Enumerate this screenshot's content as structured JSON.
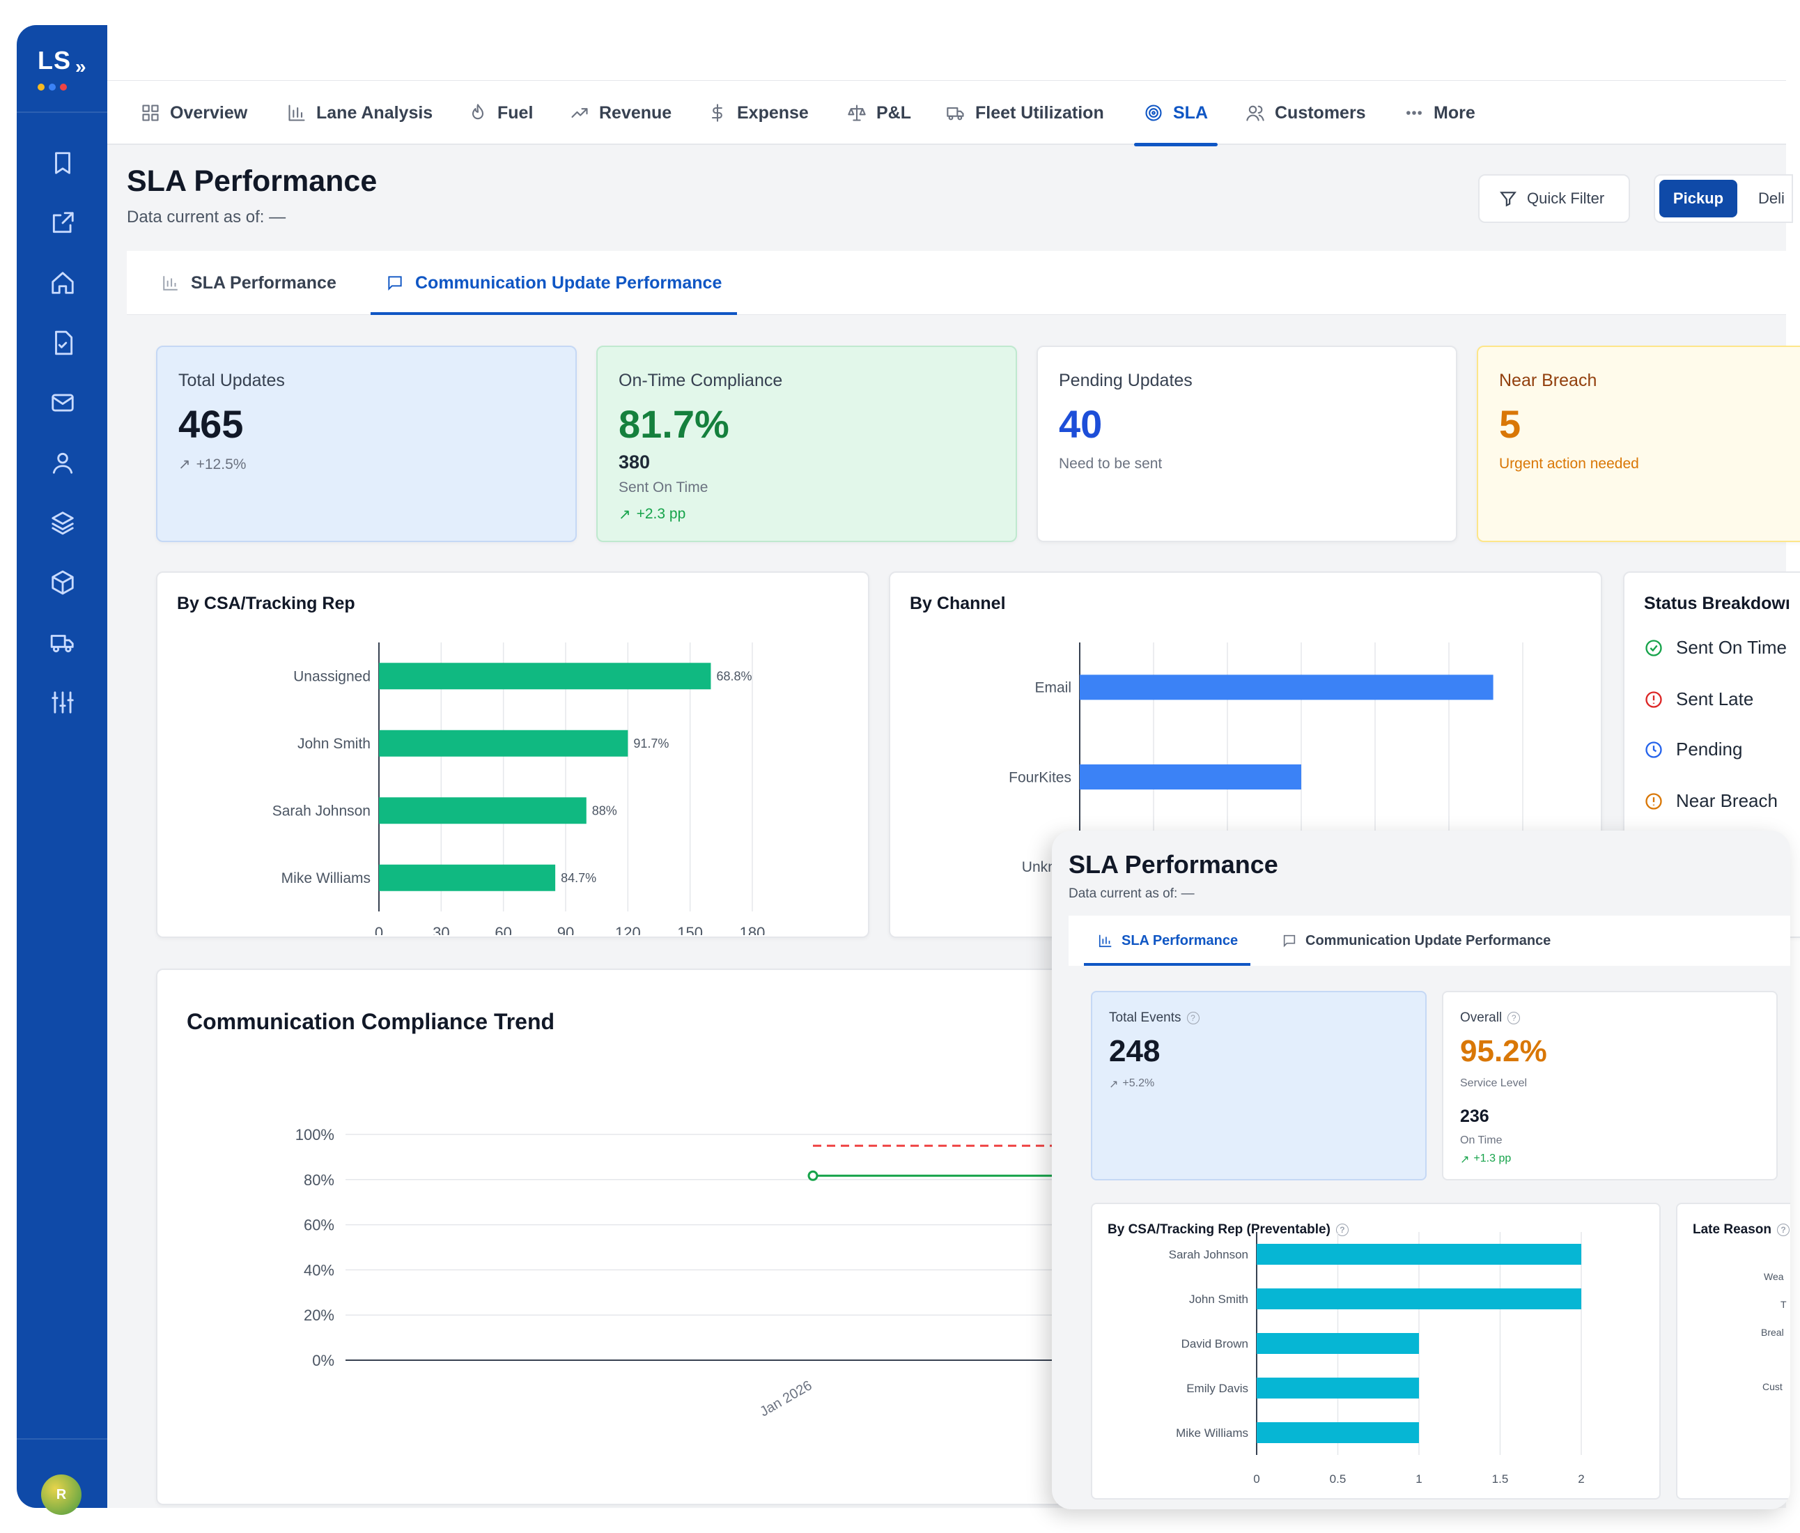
{
  "app": {
    "logo": "LS",
    "user_initial": "R"
  },
  "sidebar": {
    "icons": [
      "bookmark-icon",
      "external-link-icon",
      "home-icon",
      "file-check-icon",
      "mail-icon",
      "user-icon",
      "layers-icon",
      "package-icon",
      "truck-icon",
      "sliders-icon"
    ]
  },
  "nav": {
    "items": [
      {
        "label": "Overview",
        "icon": "grid-icon"
      },
      {
        "label": "Lane Analysis",
        "icon": "bar-chart-icon"
      },
      {
        "label": "Fuel",
        "icon": "flame-icon"
      },
      {
        "label": "Revenue",
        "icon": "trending-up-icon"
      },
      {
        "label": "Expense",
        "icon": "dollar-icon"
      },
      {
        "label": "P&L",
        "icon": "scale-icon"
      },
      {
        "label": "Fleet Utilization",
        "icon": "truck-icon"
      },
      {
        "label": "SLA",
        "icon": "target-icon"
      },
      {
        "label": "Customers",
        "icon": "users-icon"
      },
      {
        "label": "More",
        "icon": "dots-icon"
      }
    ],
    "active": "SLA"
  },
  "header": {
    "title": "SLA Performance",
    "subtitle": "Data current as of: —",
    "quick_filter": "Quick Filter",
    "toggle_on": "Pickup",
    "toggle_off": "Deli"
  },
  "subtabs": {
    "sla": "SLA Performance",
    "comm": "Communication Update Performance"
  },
  "kpis": {
    "total": {
      "label": "Total Updates",
      "value": "465",
      "trend": "+12.5%"
    },
    "ontime": {
      "label": "On-Time Compliance",
      "value": "81.7%",
      "count": "380",
      "count_label": "Sent On Time",
      "trend": "+2.3 pp"
    },
    "pending": {
      "label": "Pending Updates",
      "value": "40",
      "note": "Need to be sent"
    },
    "near": {
      "label": "Near Breach",
      "value": "5",
      "note": "Urgent action needed"
    }
  },
  "rep_chart": {
    "title": "By CSA/Tracking Rep"
  },
  "channel_chart": {
    "title": "By Channel"
  },
  "status_breakdown": {
    "title": "Status Breakdowı",
    "items": [
      {
        "label": "Sent On Time",
        "color": "#16a34a"
      },
      {
        "label": "Sent Late",
        "color": "#dc2626"
      },
      {
        "label": "Pending",
        "color": "#2563eb"
      },
      {
        "label": "Near Breach",
        "color": "#d97706"
      }
    ]
  },
  "trend_chart": {
    "title": "Communication Compliance Trend"
  },
  "overlay": {
    "title": "SLA Performance",
    "subtitle": "Data current as of: —",
    "tab_sla": "SLA Performance",
    "tab_comm": "Communication Update Performance",
    "total_events": {
      "label": "Total Events",
      "value": "248",
      "trend": "+5.2%"
    },
    "overall": {
      "label": "Overall",
      "value": "95.2%",
      "sub": "Service Level",
      "count": "236",
      "count_label": "On Time",
      "trend": "+1.3 pp"
    },
    "rep_title": "By CSA/Tracking Rep (Preventable)",
    "late_title": "Late Reason",
    "late_labels": [
      "Wea",
      "T",
      "Breal",
      "Cust"
    ]
  },
  "chart_data": [
    {
      "type": "bar",
      "orientation": "horizontal",
      "title": "By CSA/Tracking Rep",
      "categories": [
        "Unassigned",
        "John Smith",
        "Sarah Johnson",
        "Mike Williams"
      ],
      "values": [
        160,
        120,
        100,
        85
      ],
      "data_labels": [
        "68.8%",
        "91.7%",
        "88%",
        "84.7%"
      ],
      "xlim": [
        0,
        180
      ],
      "xticks": [
        0,
        30,
        60,
        90,
        120,
        150,
        180
      ],
      "color": "#10b981"
    },
    {
      "type": "bar",
      "orientation": "horizontal",
      "title": "By Channel",
      "categories": [
        "Email",
        "FourKites",
        "Unknov"
      ],
      "values": [
        280,
        150,
        0
      ],
      "xlim": [
        0,
        300
      ],
      "color": "#3b82f6"
    },
    {
      "type": "line",
      "title": "Communication Compliance Trend",
      "x": [
        "Jan 2026"
      ],
      "series": [
        {
          "values": [
            81.7
          ],
          "color": "#16a34a"
        }
      ],
      "target": 95,
      "ylim": [
        0,
        100
      ],
      "yticks": [
        "0%",
        "20%",
        "40%",
        "60%",
        "80%",
        "100%"
      ]
    },
    {
      "type": "bar",
      "orientation": "horizontal",
      "title": "By CSA/Tracking Rep (Preventable)",
      "categories": [
        "Sarah Johnson",
        "John Smith",
        "David Brown",
        "Emily Davis",
        "Mike Williams"
      ],
      "values": [
        2,
        2,
        1,
        1,
        1
      ],
      "xlim": [
        0,
        2
      ],
      "xticks": [
        "0",
        "0.5",
        "1",
        "1.5",
        "2"
      ],
      "color": "#06b6d4"
    }
  ]
}
